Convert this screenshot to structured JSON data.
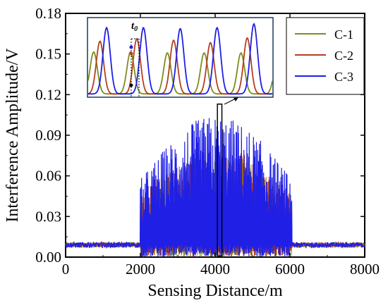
{
  "chart_data": {
    "type": "line",
    "xlabel": "Sensing Distance/m",
    "ylabel": "Interference Amplitude/V",
    "xlim": [
      0,
      8000
    ],
    "ylim": [
      0,
      0.18
    ],
    "x_ticks": [
      "0",
      "2000",
      "4000",
      "6000",
      "8000"
    ],
    "y_ticks": [
      "0.00",
      "0.03",
      "0.06",
      "0.09",
      "0.12",
      "0.15",
      "0.18"
    ],
    "legend_position": "top-right",
    "series": [
      {
        "name": "C-1",
        "color": "#7f8c1d",
        "baseline": 0.009,
        "active_range": [
          2000,
          6050
        ],
        "peak_level": 0.078
      },
      {
        "name": "C-2",
        "color": "#b3401f",
        "baseline": 0.009,
        "active_range": [
          2000,
          6050
        ],
        "peak_level": 0.082
      },
      {
        "name": "C-3",
        "color": "#1f1fe6",
        "baseline": 0.009,
        "active_range": [
          2000,
          6050
        ],
        "peak_level": 0.105
      }
    ],
    "highlight_box": {
      "x_range": [
        4060,
        4180
      ],
      "y_range": [
        0.001,
        0.113
      ]
    },
    "inset": {
      "annotation": "t",
      "annotation_sub": "0",
      "series_peaks": {
        "C-1": [
          0.09,
          0.09,
          0.088,
          0.088,
          0.088
        ],
        "C-2": [
          0.113,
          0.118,
          0.115,
          0.11,
          0.12
        ],
        "C-3": [
          0.142,
          0.142,
          0.14,
          0.142,
          0.15
        ]
      }
    }
  }
}
